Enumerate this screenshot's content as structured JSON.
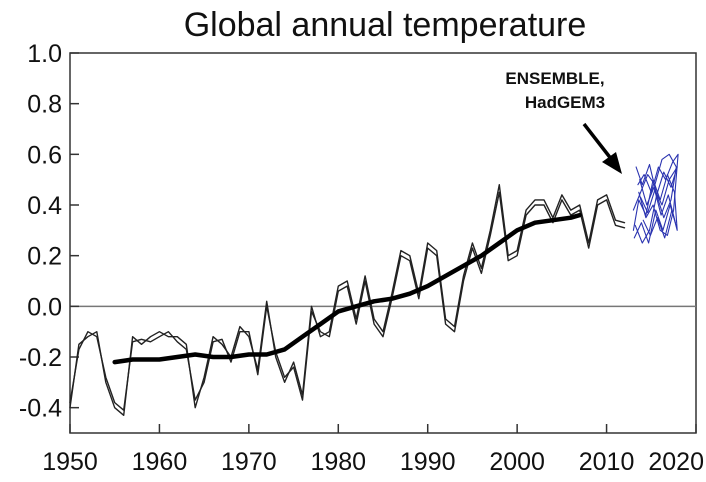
{
  "chart_data": {
    "type": "line",
    "title": "Global annual temperature",
    "xlabel": "",
    "ylabel": "",
    "xlim": [
      1950,
      2020
    ],
    "ylim": [
      -0.5,
      1.0
    ],
    "xticks": [
      "1950",
      "1960",
      "1970",
      "1980",
      "1990",
      "2000",
      "2010",
      "2020"
    ],
    "yticks": [
      "1.0",
      "0.8",
      "0.6",
      "0.4",
      "0.2",
      "0.0",
      "-0.2",
      "-0.4"
    ],
    "reference_line": 0.0,
    "annotation": {
      "lines": [
        "ENSEMBLE,",
        "HadGEM3"
      ],
      "points_to_year": 2015
    },
    "colors": {
      "observed": "#222222",
      "smoothed": "#000000",
      "ensemble": "#2a33b0"
    },
    "series": [
      {
        "style": "thin",
        "x": [
          1950,
          1951,
          1952,
          1953,
          1954,
          1955,
          1956,
          1957,
          1958,
          1959,
          1960,
          1961,
          1962,
          1963,
          1964,
          1965,
          1966,
          1967,
          1968,
          1969,
          1970,
          1971,
          1972,
          1973,
          1974,
          1975,
          1976,
          1977,
          1978,
          1979,
          1980,
          1981,
          1982,
          1983,
          1984,
          1985,
          1986,
          1987,
          1988,
          1989,
          1990,
          1991,
          1992,
          1993,
          1994,
          1995,
          1996,
          1997,
          1998,
          1999,
          2000,
          2001,
          2002,
          2003,
          2004,
          2005,
          2006,
          2007,
          2008,
          2009,
          2010,
          2011,
          2012
        ],
        "values": [
          -0.4,
          -0.15,
          -0.12,
          -0.1,
          -0.3,
          -0.4,
          -0.43,
          -0.12,
          -0.15,
          -0.12,
          -0.1,
          -0.12,
          -0.12,
          -0.15,
          -0.4,
          -0.28,
          -0.12,
          -0.15,
          -0.2,
          -0.08,
          -0.12,
          -0.25,
          0.02,
          -0.2,
          -0.3,
          -0.22,
          -0.35,
          0.0,
          -0.12,
          -0.1,
          0.08,
          0.1,
          -0.05,
          0.12,
          -0.05,
          -0.1,
          0.05,
          0.22,
          0.2,
          0.05,
          0.25,
          0.22,
          -0.05,
          -0.08,
          0.12,
          0.25,
          0.15,
          0.3,
          0.48,
          0.2,
          0.22,
          0.38,
          0.42,
          0.42,
          0.35,
          0.44,
          0.38,
          0.4,
          0.25,
          0.42,
          0.44,
          0.34,
          0.33
        ]
      },
      {
        "style": "thin",
        "x": [
          1950,
          1951,
          1952,
          1953,
          1954,
          1955,
          1956,
          1957,
          1958,
          1959,
          1960,
          1961,
          1962,
          1963,
          1964,
          1965,
          1966,
          1967,
          1968,
          1969,
          1970,
          1971,
          1972,
          1973,
          1974,
          1975,
          1976,
          1977,
          1978,
          1979,
          1980,
          1981,
          1982,
          1983,
          1984,
          1985,
          1986,
          1987,
          1988,
          1989,
          1990,
          1991,
          1992,
          1993,
          1994,
          1995,
          1996,
          1997,
          1998,
          1999,
          2000,
          2001,
          2002,
          2003,
          2004,
          2005,
          2006,
          2007,
          2008,
          2009,
          2010,
          2011,
          2012
        ],
        "values": [
          -0.38,
          -0.17,
          -0.1,
          -0.12,
          -0.28,
          -0.38,
          -0.41,
          -0.14,
          -0.13,
          -0.14,
          -0.12,
          -0.1,
          -0.14,
          -0.17,
          -0.37,
          -0.3,
          -0.14,
          -0.13,
          -0.22,
          -0.1,
          -0.1,
          -0.27,
          0.0,
          -0.18,
          -0.28,
          -0.24,
          -0.37,
          -0.02,
          -0.1,
          -0.12,
          0.06,
          0.08,
          -0.07,
          0.1,
          -0.07,
          -0.12,
          0.03,
          0.2,
          0.18,
          0.03,
          0.23,
          0.2,
          -0.07,
          -0.1,
          0.1,
          0.23,
          0.13,
          0.28,
          0.45,
          0.18,
          0.2,
          0.36,
          0.4,
          0.4,
          0.33,
          0.42,
          0.36,
          0.38,
          0.23,
          0.4,
          0.42,
          0.32,
          0.31
        ]
      },
      {
        "style": "thick",
        "x": [
          1955,
          1957,
          1960,
          1962,
          1964,
          1966,
          1968,
          1970,
          1972,
          1974,
          1976,
          1978,
          1980,
          1982,
          1984,
          1986,
          1988,
          1990,
          1992,
          1994,
          1996,
          1998,
          2000,
          2002,
          2004,
          2006,
          2007
        ],
        "values": [
          -0.22,
          -0.21,
          -0.21,
          -0.2,
          -0.19,
          -0.2,
          -0.2,
          -0.19,
          -0.19,
          -0.17,
          -0.12,
          -0.07,
          -0.02,
          0.0,
          0.02,
          0.03,
          0.05,
          0.08,
          0.12,
          0.16,
          0.2,
          0.25,
          0.3,
          0.33,
          0.34,
          0.35,
          0.36
        ]
      },
      {
        "style": "ensemble",
        "x": [
          2013.0,
          2013.8,
          2014.6,
          2015.4,
          2016.2,
          2017.0,
          2017.8,
          2017.2,
          2016.4,
          2015.6,
          2014.8,
          2014.0,
          2013.2
        ],
        "values": [
          0.38,
          0.45,
          0.52,
          0.48,
          0.58,
          0.6,
          0.55,
          0.42,
          0.35,
          0.44,
          0.3,
          0.25,
          0.32
        ]
      },
      {
        "style": "ensemble",
        "x": [
          2013.5,
          2014.2,
          2015.0,
          2015.8,
          2016.6,
          2017.4,
          2018.0,
          2017.5,
          2016.8,
          2016.0,
          2015.2,
          2014.4,
          2013.6
        ],
        "values": [
          0.48,
          0.52,
          0.45,
          0.55,
          0.5,
          0.57,
          0.6,
          0.38,
          0.28,
          0.3,
          0.4,
          0.35,
          0.45
        ]
      },
      {
        "style": "ensemble",
        "x": [
          2013.0,
          2013.6,
          2014.4,
          2015.2,
          2016.0,
          2016.8,
          2017.6,
          2017.9,
          2017.3,
          2016.5,
          2015.7,
          2014.9,
          2014.1
        ],
        "values": [
          0.3,
          0.42,
          0.36,
          0.5,
          0.42,
          0.52,
          0.45,
          0.3,
          0.38,
          0.27,
          0.35,
          0.28,
          0.34
        ]
      },
      {
        "style": "ensemble",
        "x": [
          2013.3,
          2014.0,
          2014.8,
          2015.6,
          2016.4,
          2017.2,
          2017.9,
          2017.0,
          2016.2,
          2015.4,
          2014.6,
          2013.8
        ],
        "values": [
          0.55,
          0.48,
          0.56,
          0.44,
          0.53,
          0.47,
          0.55,
          0.5,
          0.4,
          0.46,
          0.37,
          0.43
        ]
      },
      {
        "style": "ensemble",
        "x": [
          2013.1,
          2013.9,
          2014.7,
          2015.5,
          2016.3,
          2017.1,
          2017.7,
          2016.9,
          2016.1,
          2015.3,
          2014.5,
          2013.7
        ],
        "values": [
          0.27,
          0.33,
          0.25,
          0.38,
          0.3,
          0.4,
          0.33,
          0.44,
          0.36,
          0.47,
          0.4,
          0.5
        ]
      }
    ]
  }
}
